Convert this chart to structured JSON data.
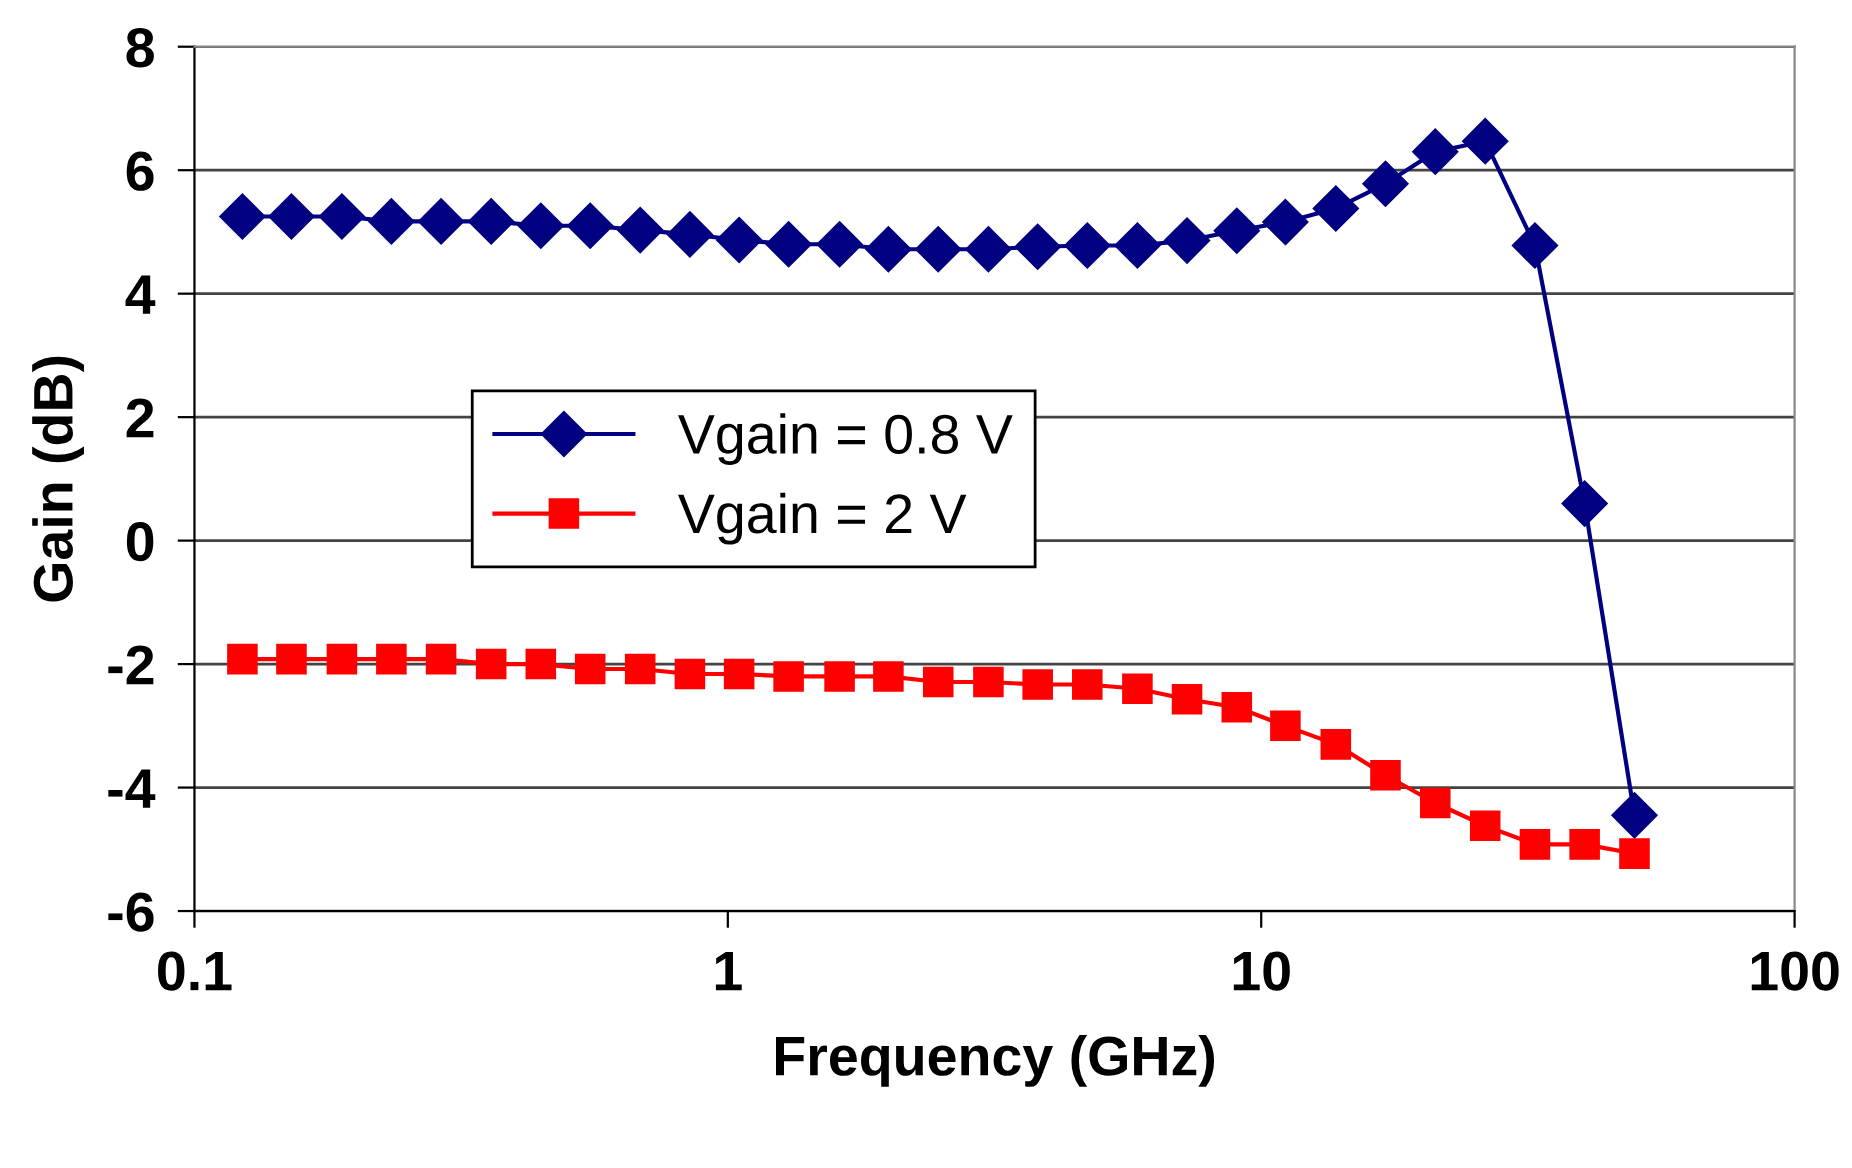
{
  "chart_data": {
    "type": "line",
    "xlabel": "Frequency (GHz)",
    "ylabel": "Gain (dB)",
    "x": [
      0.123,
      0.152,
      0.189,
      0.234,
      0.29,
      0.36,
      0.446,
      0.552,
      0.685,
      0.849,
      1.05,
      1.3,
      1.62,
      2.0,
      2.48,
      3.08,
      3.81,
      4.72,
      5.86,
      7.26,
      9.0,
      11.1,
      13.8,
      17.1,
      21.2,
      26.3,
      32.6,
      40.4,
      50.1
    ],
    "series": [
      {
        "name": "Vgain = 0.8 V",
        "color": "#000080",
        "marker": "diamond",
        "values": [
          5.25,
          5.25,
          5.25,
          5.17,
          5.17,
          5.17,
          5.1,
          5.1,
          5.03,
          4.96,
          4.87,
          4.8,
          4.8,
          4.72,
          4.72,
          4.72,
          4.76,
          4.78,
          4.78,
          4.86,
          5.02,
          5.16,
          5.38,
          5.78,
          6.3,
          6.47,
          4.78,
          0.6,
          -4.45
        ]
      },
      {
        "name": "Vgain = 2 V",
        "color": "#ff0000",
        "marker": "square",
        "values": [
          -1.92,
          -1.92,
          -1.92,
          -1.92,
          -1.92,
          -2.0,
          -2.0,
          -2.08,
          -2.08,
          -2.16,
          -2.16,
          -2.2,
          -2.2,
          -2.2,
          -2.29,
          -2.29,
          -2.33,
          -2.33,
          -2.4,
          -2.57,
          -2.7,
          -3.0,
          -3.3,
          -3.8,
          -4.25,
          -4.62,
          -4.92,
          -4.92,
          -5.07
        ]
      }
    ],
    "log": "x",
    "xlim": [
      0.1,
      100
    ],
    "xticks": [
      0.1,
      1,
      10,
      100
    ],
    "ylim": [
      -6,
      8
    ],
    "yticks": [
      -6,
      -4,
      -2,
      0,
      2,
      4,
      6,
      8
    ],
    "grid": "y",
    "legend": "center left",
    "line_style": "solid"
  }
}
